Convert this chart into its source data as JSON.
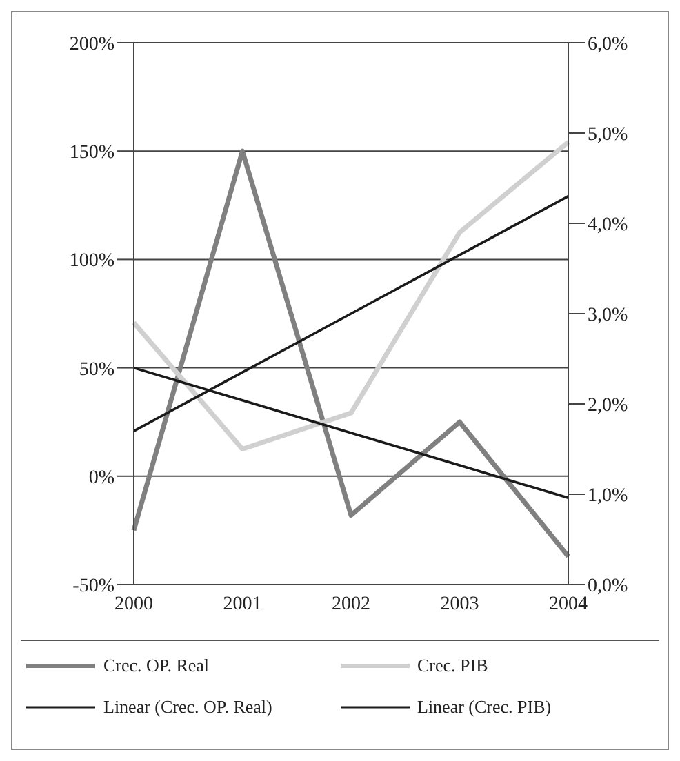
{
  "chart_data": {
    "type": "line",
    "categories": [
      "2000",
      "2001",
      "2002",
      "2003",
      "2004"
    ],
    "series": [
      {
        "name": "Crec. OP. Real",
        "color": "#808080",
        "values": [
          -25,
          150,
          -18,
          25,
          -37
        ]
      },
      {
        "name": "Crec. PIB",
        "color": "#d0d0d0",
        "axis": "y2",
        "values": [
          2.9,
          1.5,
          1.9,
          3.9,
          4.9
        ]
      },
      {
        "name": "Linear (Crec. OP. Real)",
        "color": "#1a1a1a",
        "values": [
          50,
          35,
          20,
          5,
          -10
        ]
      },
      {
        "name": "Linear (Crec. PIB)",
        "color": "#1a1a1a",
        "axis": "y2",
        "values": [
          1.7,
          2.35,
          3.0,
          3.65,
          4.3
        ]
      }
    ],
    "ylim": [
      -50,
      200
    ],
    "yticks": [
      {
        "value": -50,
        "label": "-50%"
      },
      {
        "value": 0,
        "label": "0%"
      },
      {
        "value": 50,
        "label": "50%"
      },
      {
        "value": 100,
        "label": "100%"
      },
      {
        "value": 150,
        "label": "150%"
      },
      {
        "value": 200,
        "label": "200%"
      }
    ],
    "y2lim": [
      0,
      6
    ],
    "y2ticks": [
      {
        "value": 0,
        "label": "0,0%"
      },
      {
        "value": 1,
        "label": "1,0%"
      },
      {
        "value": 2,
        "label": "2,0%"
      },
      {
        "value": 3,
        "label": "3,0%"
      },
      {
        "value": 4,
        "label": "4,0%"
      },
      {
        "value": 5,
        "label": "5,0%"
      },
      {
        "value": 6,
        "label": "6,0%"
      }
    ],
    "grid": "y",
    "legend": "bottom"
  }
}
